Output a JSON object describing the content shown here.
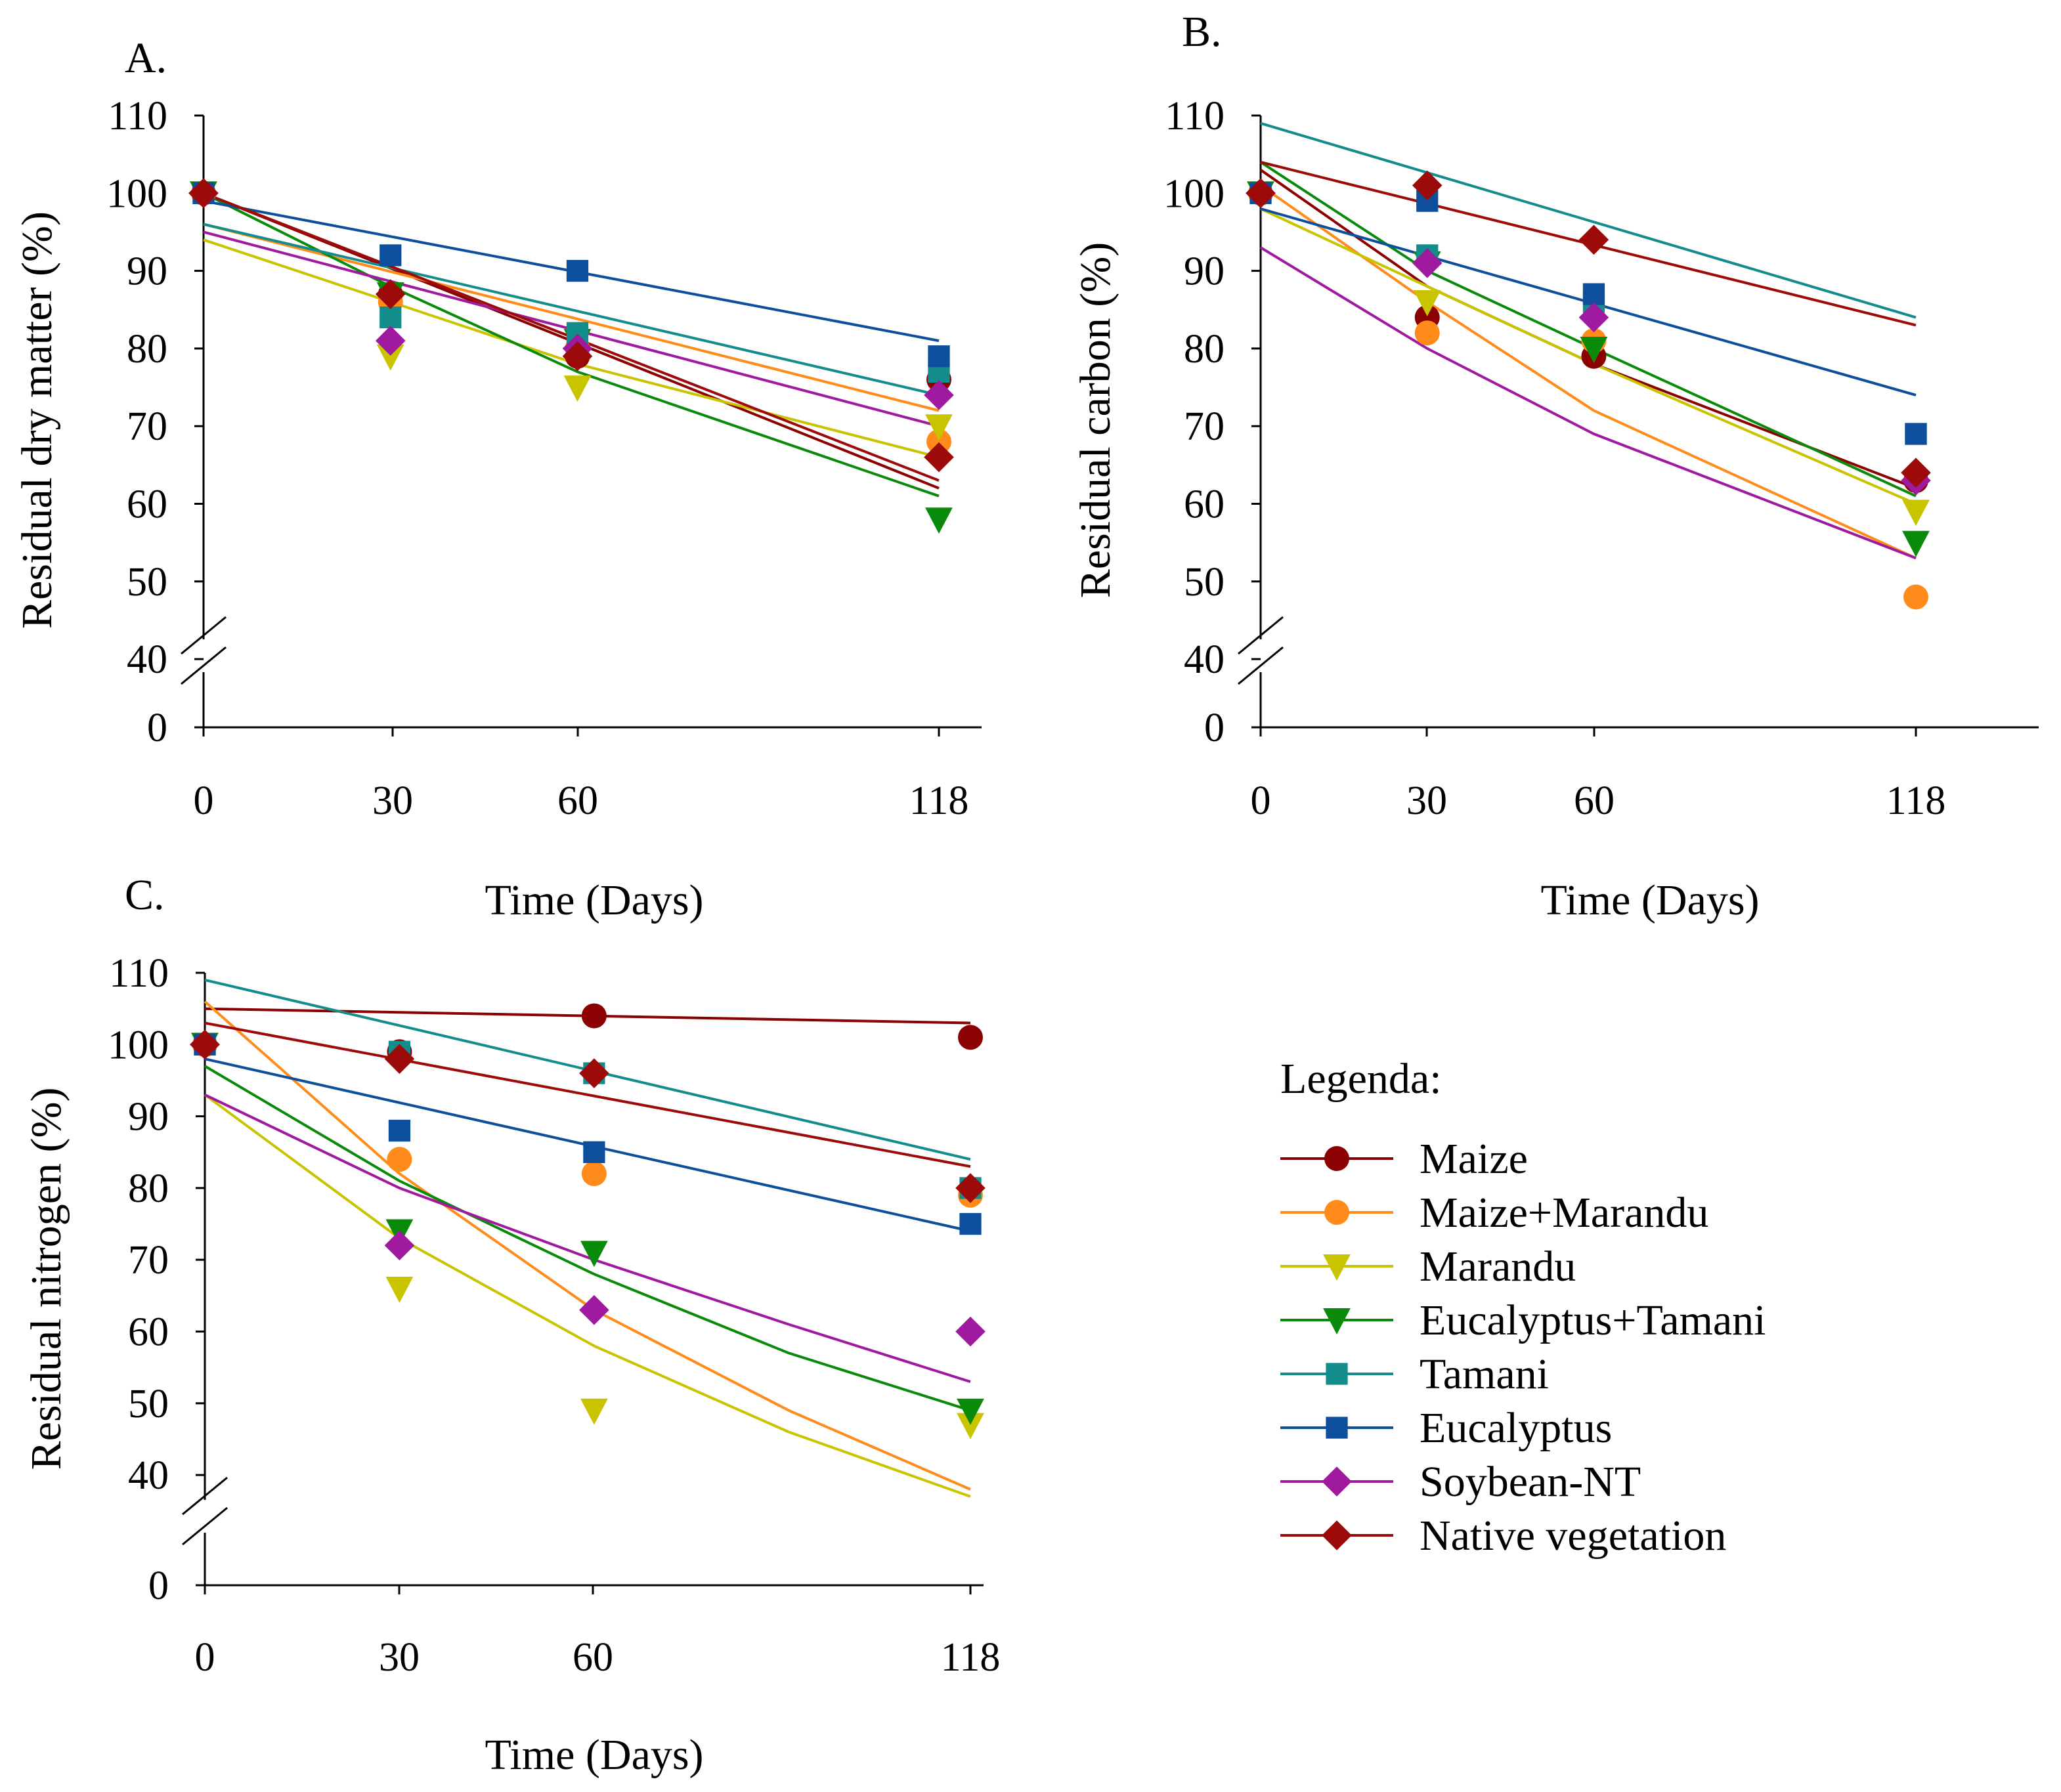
{
  "series_styles": [
    {
      "name": "Maize",
      "color": "#8B0000",
      "marker": "circle"
    },
    {
      "name": "Maize+Marandu",
      "color": "#FF8C1A",
      "marker": "circle"
    },
    {
      "name": "Marandu",
      "color": "#C8C400",
      "marker": "triangle-down"
    },
    {
      "name": "Eucalyptus+Tamani",
      "color": "#0A8A0A",
      "marker": "triangle-down"
    },
    {
      "name": "Tamani",
      "color": "#138C8C",
      "marker": "square"
    },
    {
      "name": "Eucalyptus",
      "color": "#0D4F9C",
      "marker": "square"
    },
    {
      "name": "Soybean-NT",
      "color": "#A01AA0",
      "marker": "diamond"
    },
    {
      "name": "Native vegetation",
      "color": "#9C0A0A",
      "marker": "diamond"
    }
  ],
  "legend": {
    "title": "Legenda:",
    "entries": [
      "Maize",
      "Maize+Marandu",
      "Marandu",
      "Eucalyptus+Tamani",
      "Tamani",
      "Eucalyptus",
      "Soybean-NT",
      "Native vegetation"
    ]
  },
  "chart_data": [
    {
      "id": "A",
      "panel_label": "A.",
      "type": "scatter",
      "title": "",
      "xlabel": "Time (Days)",
      "ylabel": "Residual dry matter (%)",
      "x_ticks": [
        "0",
        "30",
        "60",
        "118"
      ],
      "x_values": [
        0,
        30,
        60,
        118
      ],
      "y_ticks": [
        "0",
        "40",
        "50",
        "60",
        "70",
        "80",
        "90",
        "100",
        "110"
      ],
      "ylim": [
        40,
        110
      ],
      "axis_break": true,
      "series": [
        {
          "name": "Maize",
          "points": [
            [
              0,
              100
            ],
            [
              30,
              87
            ],
            [
              60,
              79
            ],
            [
              118,
              76
            ]
          ],
          "trend": [
            [
              0,
              100
            ],
            [
              118,
              62
            ]
          ]
        },
        {
          "name": "Maize+Marandu",
          "points": [
            [
              0,
              100
            ],
            [
              30,
              86
            ],
            [
              60,
              80
            ],
            [
              118,
              68
            ]
          ],
          "trend": [
            [
              0,
              96
            ],
            [
              118,
              72
            ]
          ]
        },
        {
          "name": "Marandu",
          "points": [
            [
              0,
              100
            ],
            [
              30,
              79
            ],
            [
              60,
              75
            ],
            [
              118,
              70
            ]
          ],
          "trend": [
            [
              0,
              94
            ],
            [
              30,
              86
            ],
            [
              60,
              78
            ],
            [
              118,
              66
            ]
          ]
        },
        {
          "name": "Eucalyptus+Tamani",
          "points": [
            [
              0,
              100
            ],
            [
              30,
              87
            ],
            [
              60,
              81
            ],
            [
              118,
              58
            ]
          ],
          "trend": [
            [
              0,
              100
            ],
            [
              30,
              88
            ],
            [
              60,
              77
            ],
            [
              118,
              61
            ]
          ]
        },
        {
          "name": "Tamani",
          "points": [
            [
              0,
              100
            ],
            [
              30,
              84
            ],
            [
              60,
              82
            ],
            [
              118,
              77
            ]
          ],
          "trend": [
            [
              0,
              96
            ],
            [
              118,
              74
            ]
          ]
        },
        {
          "name": "Eucalyptus",
          "points": [
            [
              0,
              100
            ],
            [
              30,
              92
            ],
            [
              60,
              90
            ],
            [
              118,
              79
            ]
          ],
          "trend": [
            [
              0,
              99
            ],
            [
              118,
              81
            ]
          ]
        },
        {
          "name": "Soybean-NT",
          "points": [
            [
              0,
              100
            ],
            [
              30,
              81
            ],
            [
              60,
              80
            ],
            [
              118,
              74
            ]
          ],
          "trend": [
            [
              0,
              95
            ],
            [
              118,
              70
            ]
          ]
        },
        {
          "name": "Native vegetation",
          "points": [
            [
              0,
              100
            ],
            [
              30,
              87
            ],
            [
              60,
              79
            ],
            [
              118,
              66
            ]
          ],
          "trend": [
            [
              0,
              100
            ],
            [
              118,
              63
            ]
          ]
        }
      ]
    },
    {
      "id": "B",
      "panel_label": "B.",
      "type": "scatter",
      "title": "",
      "xlabel": "Time (Days)",
      "ylabel": "Residual carbon (%)",
      "x_ticks": [
        "0",
        "30",
        "60",
        "118"
      ],
      "x_values": [
        0,
        30,
        60,
        118
      ],
      "y_ticks": [
        "0",
        "40",
        "50",
        "60",
        "70",
        "80",
        "90",
        "100",
        "110"
      ],
      "ylim": [
        40,
        110
      ],
      "axis_break": true,
      "series": [
        {
          "name": "Maize",
          "points": [
            [
              0,
              100
            ],
            [
              30,
              84
            ],
            [
              60,
              79
            ],
            [
              118,
              63
            ]
          ],
          "trend": [
            [
              0,
              103
            ],
            [
              30,
              88
            ],
            [
              60,
              78
            ],
            [
              118,
              62
            ]
          ]
        },
        {
          "name": "Maize+Marandu",
          "points": [
            [
              0,
              100
            ],
            [
              30,
              82
            ],
            [
              60,
              81
            ],
            [
              118,
              48
            ]
          ],
          "trend": [
            [
              0,
              101
            ],
            [
              30,
              86
            ],
            [
              60,
              72
            ],
            [
              118,
              53
            ]
          ]
        },
        {
          "name": "Marandu",
          "points": [
            [
              0,
              100
            ],
            [
              30,
              86
            ],
            [
              60,
              80
            ],
            [
              118,
              59
            ]
          ],
          "trend": [
            [
              0,
              98
            ],
            [
              30,
              88
            ],
            [
              60,
              78
            ],
            [
              118,
              60
            ]
          ]
        },
        {
          "name": "Eucalyptus+Tamani",
          "points": [
            [
              0,
              100
            ],
            [
              30,
              91
            ],
            [
              60,
              80
            ],
            [
              118,
              55
            ]
          ],
          "trend": [
            [
              0,
              104
            ],
            [
              30,
              90
            ],
            [
              60,
              80
            ],
            [
              118,
              61
            ]
          ]
        },
        {
          "name": "Tamani",
          "points": [
            [
              0,
              100
            ],
            [
              30,
              92
            ],
            [
              60,
              86
            ],
            [
              118,
              69
            ]
          ],
          "trend": [
            [
              0,
              109
            ],
            [
              118,
              84
            ]
          ]
        },
        {
          "name": "Eucalyptus",
          "points": [
            [
              0,
              100
            ],
            [
              30,
              99
            ],
            [
              60,
              87
            ],
            [
              118,
              69
            ]
          ],
          "trend": [
            [
              0,
              98
            ],
            [
              118,
              74
            ]
          ]
        },
        {
          "name": "Soybean-NT",
          "points": [
            [
              0,
              100
            ],
            [
              30,
              91
            ],
            [
              60,
              84
            ],
            [
              118,
              63
            ]
          ],
          "trend": [
            [
              0,
              93
            ],
            [
              30,
              80
            ],
            [
              60,
              69
            ],
            [
              118,
              53
            ]
          ]
        },
        {
          "name": "Native vegetation",
          "points": [
            [
              0,
              100
            ],
            [
              30,
              101
            ],
            [
              60,
              94
            ],
            [
              118,
              64
            ]
          ],
          "trend": [
            [
              0,
              104
            ],
            [
              118,
              83
            ]
          ]
        }
      ]
    },
    {
      "id": "C",
      "panel_label": "C.",
      "type": "scatter",
      "title": "",
      "xlabel": "Time (Days)",
      "ylabel": "Residual nitrogen (%)",
      "x_ticks": [
        "0",
        "30",
        "60",
        "118"
      ],
      "x_values": [
        0,
        30,
        60,
        118
      ],
      "y_ticks": [
        "0",
        "40",
        "50",
        "60",
        "70",
        "80",
        "90",
        "100",
        "110"
      ],
      "ylim": [
        40,
        110
      ],
      "axis_break": true,
      "series": [
        {
          "name": "Maize",
          "points": [
            [
              0,
              100
            ],
            [
              30,
              99
            ],
            [
              60,
              104
            ],
            [
              118,
              101
            ]
          ],
          "trend": [
            [
              0,
              105
            ],
            [
              118,
              103
            ]
          ]
        },
        {
          "name": "Maize+Marandu",
          "points": [
            [
              0,
              100
            ],
            [
              30,
              84
            ],
            [
              60,
              82
            ],
            [
              118,
              79
            ]
          ],
          "trend": [
            [
              0,
              106
            ],
            [
              30,
              82
            ],
            [
              60,
              63
            ],
            [
              90,
              49
            ],
            [
              118,
              38
            ]
          ]
        },
        {
          "name": "Marandu",
          "points": [
            [
              0,
              100
            ],
            [
              30,
              66
            ],
            [
              60,
              49
            ],
            [
              118,
              47
            ]
          ],
          "trend": [
            [
              0,
              93
            ],
            [
              30,
              73
            ],
            [
              60,
              58
            ],
            [
              90,
              46
            ],
            [
              118,
              37
            ]
          ]
        },
        {
          "name": "Eucalyptus+Tamani",
          "points": [
            [
              0,
              100
            ],
            [
              30,
              74
            ],
            [
              60,
              71
            ],
            [
              118,
              49
            ]
          ],
          "trend": [
            [
              0,
              97
            ],
            [
              30,
              81
            ],
            [
              60,
              68
            ],
            [
              90,
              57
            ],
            [
              118,
              49
            ]
          ]
        },
        {
          "name": "Tamani",
          "points": [
            [
              0,
              100
            ],
            [
              30,
              99
            ],
            [
              60,
              96
            ],
            [
              118,
              80
            ]
          ],
          "trend": [
            [
              0,
              109
            ],
            [
              118,
              84
            ]
          ]
        },
        {
          "name": "Eucalyptus",
          "points": [
            [
              0,
              100
            ],
            [
              30,
              88
            ],
            [
              60,
              85
            ],
            [
              118,
              75
            ]
          ],
          "trend": [
            [
              0,
              98
            ],
            [
              118,
              74
            ]
          ]
        },
        {
          "name": "Soybean-NT",
          "points": [
            [
              0,
              100
            ],
            [
              30,
              72
            ],
            [
              60,
              63
            ],
            [
              118,
              60
            ]
          ],
          "trend": [
            [
              0,
              93
            ],
            [
              30,
              80
            ],
            [
              60,
              70
            ],
            [
              90,
              61
            ],
            [
              118,
              53
            ]
          ]
        },
        {
          "name": "Native vegetation",
          "points": [
            [
              0,
              100
            ],
            [
              30,
              98
            ],
            [
              60,
              96
            ],
            [
              118,
              80
            ]
          ],
          "trend": [
            [
              0,
              103
            ],
            [
              118,
              83
            ]
          ]
        }
      ]
    }
  ]
}
